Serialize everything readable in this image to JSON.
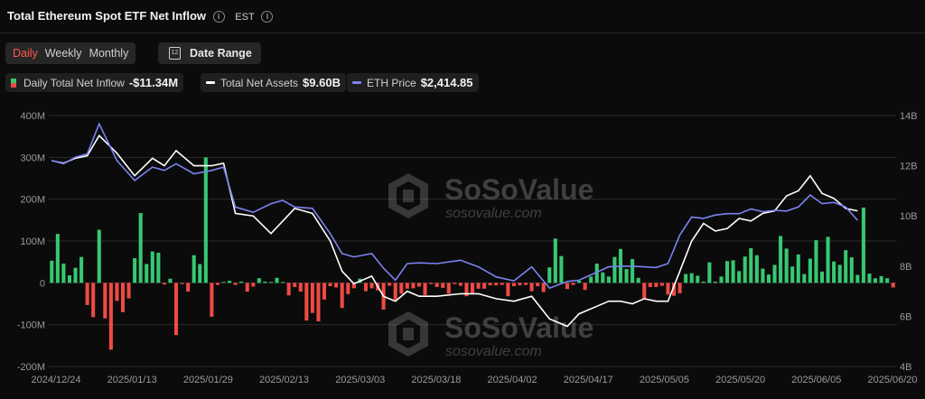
{
  "header": {
    "title": "Total Ethereum Spot ETF Net Inflow",
    "timezone": "EST",
    "info_icon": "i"
  },
  "controls": {
    "tabs": [
      {
        "label": "Daily",
        "active": true
      },
      {
        "label": "Weekly",
        "active": false
      },
      {
        "label": "Monthly",
        "active": false
      }
    ],
    "date_range_label": "Date Range",
    "calendar_glyph": "12"
  },
  "legend": {
    "inflow": {
      "label": "Daily Total Net Inflow",
      "value": "-$11.34M"
    },
    "assets": {
      "label": "Total Net Assets",
      "value": "$9.60B"
    },
    "eth": {
      "label": "ETH Price",
      "value": "$2,414.85"
    }
  },
  "watermark": {
    "brand": "SoSoValue",
    "url": "sosovalue.com"
  },
  "colors": {
    "positive": "#37c871",
    "negative": "#ef4a43",
    "assets_line": "#ffffff",
    "eth_line": "#7b83f0",
    "grid": "#2b2b2b"
  },
  "chart_data": {
    "type": "bar",
    "x_tick_labels": [
      "2024/12/24",
      "2025/01/13",
      "2025/01/29",
      "2025/02/13",
      "2025/03/03",
      "2025/03/18",
      "2025/04/02",
      "2025/04/17",
      "2025/05/05",
      "2025/05/20",
      "2025/06/05",
      "2025/06/20"
    ],
    "y_left": {
      "ylim": [
        -200,
        400
      ],
      "unit": "M",
      "tick_labels": [
        "-200M",
        "-100M",
        "0",
        "100M",
        "200M",
        "300M",
        "400M"
      ]
    },
    "y_right": {
      "ylim": [
        4,
        14
      ],
      "unit": "B",
      "tick_labels": [
        "4B",
        "6B",
        "8B",
        "10B",
        "12B",
        "14B"
      ]
    },
    "grid": true,
    "series": [
      {
        "name": "Daily Total Net Inflow",
        "type": "bar",
        "unit": "M",
        "values": [
          53,
          117,
          46,
          18,
          36,
          62,
          -53,
          -82,
          127,
          -85,
          -160,
          -43,
          -70,
          -37,
          59,
          167,
          45,
          75,
          72,
          -4,
          10,
          -125,
          -3,
          -21,
          66,
          45,
          300,
          -81,
          -5,
          2,
          5,
          -5,
          3,
          -21,
          -9,
          11,
          3,
          2,
          12,
          2,
          -30,
          -10,
          -21,
          -90,
          -72,
          -92,
          -40,
          -8,
          -11,
          -60,
          -27,
          -13,
          10,
          -20,
          -13,
          -18,
          -64,
          -7,
          -41,
          -26,
          -14,
          -13,
          -9,
          -29,
          -3,
          -10,
          -12,
          -26,
          -3,
          -7,
          -32,
          -24,
          -14,
          -14,
          -6,
          -6,
          -5,
          -32,
          -8,
          -6,
          -5,
          -20,
          -8,
          -22,
          37,
          106,
          64,
          -15,
          -5,
          5,
          -17,
          15,
          46,
          25,
          15,
          62,
          81,
          33,
          57,
          12,
          -37,
          -10,
          -10,
          -7,
          -28,
          -31,
          -25,
          21,
          23,
          17,
          3,
          49,
          3,
          15,
          52,
          54,
          28,
          63,
          83,
          66,
          34,
          20,
          43,
          112,
          82,
          39,
          68,
          21,
          58,
          102,
          27,
          110,
          51,
          43,
          78,
          61,
          19,
          180,
          22,
          11,
          16,
          11,
          -11
        ]
      },
      {
        "name": "Total Net Assets",
        "type": "line",
        "unit": "B",
        "x": [
          0,
          2,
          4,
          6,
          8,
          11,
          14,
          17,
          19,
          21,
          24,
          27,
          29,
          31,
          34,
          37,
          39,
          41,
          44,
          47,
          49,
          51,
          54,
          56,
          58,
          60,
          62,
          65,
          69,
          72,
          75,
          78,
          81,
          84,
          87,
          89,
          92,
          94,
          96,
          98,
          100,
          102,
          104,
          106,
          108,
          110,
          112,
          114,
          116,
          118,
          120,
          122,
          124,
          126,
          128,
          130,
          132,
          134,
          136
        ],
        "values": [
          12.2,
          12.1,
          12.3,
          12.4,
          13.2,
          12.5,
          11.6,
          12.3,
          12.0,
          12.6,
          12.0,
          12.0,
          12.1,
          10.1,
          10.0,
          9.3,
          9.8,
          10.3,
          10.1,
          9.0,
          7.8,
          7.3,
          7.6,
          6.8,
          6.6,
          7.0,
          6.8,
          6.8,
          6.9,
          6.9,
          6.7,
          6.6,
          6.8,
          5.9,
          5.6,
          6.1,
          6.4,
          6.6,
          6.6,
          6.5,
          6.7,
          6.6,
          6.6,
          7.8,
          9.0,
          9.7,
          9.4,
          9.5,
          9.9,
          9.8,
          10.1,
          10.2,
          10.8,
          11.0,
          11.6,
          10.9,
          10.7,
          10.3,
          10.2
        ]
      },
      {
        "name": "ETH Price",
        "type": "line",
        "unit": "USD",
        "x": [
          0,
          2,
          4,
          6,
          8,
          11,
          14,
          17,
          19,
          21,
          24,
          27,
          29,
          31,
          34,
          37,
          39,
          41,
          44,
          47,
          49,
          51,
          54,
          56,
          58,
          60,
          62,
          65,
          69,
          72,
          75,
          78,
          81,
          84,
          87,
          89,
          92,
          94,
          96,
          98,
          100,
          102,
          104,
          106,
          108,
          110,
          112,
          114,
          116,
          118,
          120,
          122,
          124,
          126,
          128,
          130,
          132,
          134,
          136
        ],
        "values": [
          3400,
          3350,
          3450,
          3500,
          3950,
          3400,
          3100,
          3300,
          3250,
          3350,
          3200,
          3250,
          3300,
          2700,
          2620,
          2750,
          2800,
          2700,
          2680,
          2300,
          2000,
          1950,
          2000,
          1780,
          1600,
          1850,
          1860,
          1850,
          1900,
          1800,
          1650,
          1590,
          1800,
          1480,
          1580,
          1600,
          1720,
          1800,
          1810,
          1810,
          1800,
          1790,
          1850,
          2280,
          2550,
          2530,
          2580,
          2600,
          2600,
          2670,
          2630,
          2650,
          2640,
          2700,
          2880,
          2750,
          2770,
          2700,
          2500
        ]
      }
    ]
  }
}
